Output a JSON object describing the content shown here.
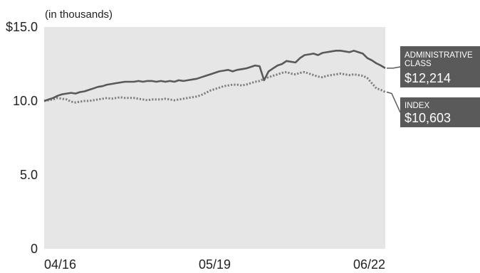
{
  "chart_data": {
    "type": "line",
    "units_note": "(in thousands)",
    "y_ticks": [
      {
        "value": 0,
        "label": "0"
      },
      {
        "value": 5,
        "label": "5.0"
      },
      {
        "value": 10,
        "label": "10.0"
      },
      {
        "value": 15,
        "label": "$15.0"
      }
    ],
    "x_ticks": [
      {
        "index": 0,
        "label": "04/16"
      },
      {
        "index": 38,
        "label": "05/19"
      },
      {
        "index": 76,
        "label": "06/22"
      }
    ],
    "ylim": [
      0,
      15
    ],
    "grid": false,
    "legend_placement": "right",
    "series": [
      {
        "name": "ADMINISTRATIVE CLASS",
        "end_value_label": "$12,214",
        "color": "#595959",
        "style": "solid",
        "values": [
          10.0,
          10.1,
          10.2,
          10.35,
          10.45,
          10.5,
          10.55,
          10.5,
          10.6,
          10.65,
          10.75,
          10.85,
          10.95,
          11.0,
          11.1,
          11.15,
          11.2,
          11.25,
          11.3,
          11.3,
          11.3,
          11.35,
          11.3,
          11.35,
          11.35,
          11.3,
          11.35,
          11.3,
          11.35,
          11.3,
          11.4,
          11.35,
          11.4,
          11.45,
          11.5,
          11.6,
          11.7,
          11.8,
          11.9,
          12.0,
          12.05,
          12.1,
          12.0,
          12.1,
          12.15,
          12.2,
          12.3,
          12.4,
          12.35,
          11.4,
          12.0,
          12.2,
          12.4,
          12.5,
          12.7,
          12.65,
          12.6,
          12.9,
          13.1,
          13.15,
          13.2,
          13.1,
          13.25,
          13.3,
          13.35,
          13.4,
          13.4,
          13.35,
          13.3,
          13.4,
          13.3,
          13.2,
          12.9,
          12.75,
          12.55,
          12.4,
          12.214
        ]
      },
      {
        "name": "INDEX",
        "end_value_label": "$10,603",
        "color": "#7f7f7f",
        "style": "dotted",
        "values": [
          10.0,
          10.05,
          10.1,
          10.2,
          10.15,
          10.1,
          9.95,
          9.9,
          9.95,
          10.0,
          10.0,
          10.05,
          10.1,
          10.15,
          10.2,
          10.15,
          10.2,
          10.25,
          10.2,
          10.2,
          10.2,
          10.15,
          10.1,
          10.05,
          10.1,
          10.1,
          10.1,
          10.15,
          10.1,
          10.05,
          10.1,
          10.15,
          10.2,
          10.25,
          10.3,
          10.4,
          10.55,
          10.7,
          10.8,
          10.9,
          11.0,
          11.05,
          11.1,
          11.1,
          11.05,
          11.1,
          11.2,
          11.3,
          11.35,
          11.5,
          11.6,
          11.7,
          11.8,
          11.9,
          11.95,
          11.85,
          11.8,
          11.9,
          11.95,
          11.85,
          11.75,
          11.65,
          11.6,
          11.7,
          11.75,
          11.8,
          11.85,
          11.8,
          11.75,
          11.8,
          11.75,
          11.7,
          11.55,
          11.2,
          10.85,
          10.75,
          10.603
        ]
      }
    ]
  }
}
